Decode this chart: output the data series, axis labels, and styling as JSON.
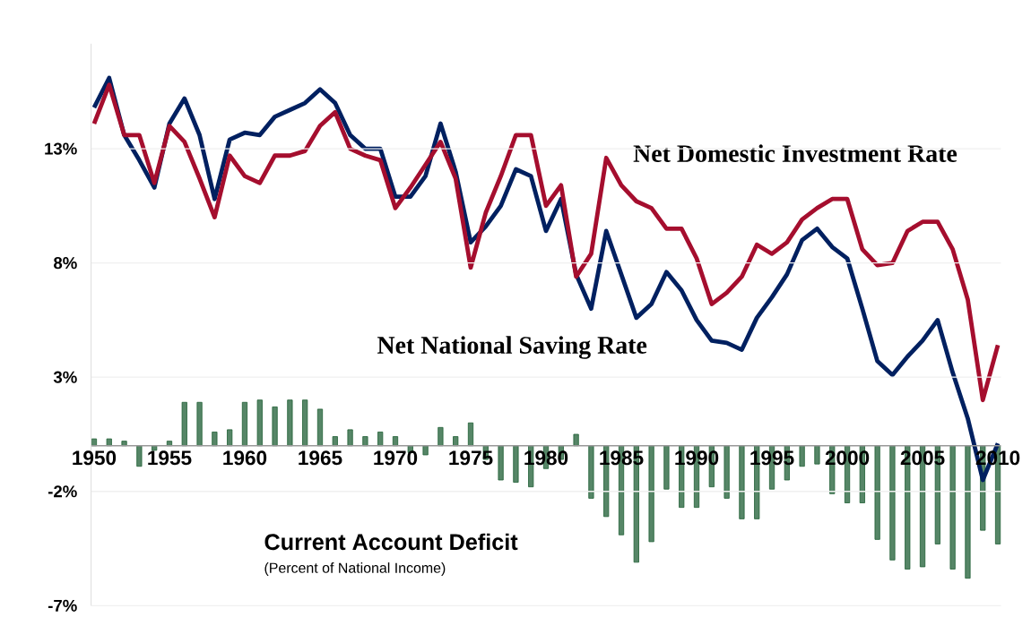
{
  "chart_data": {
    "type": "line",
    "x": [
      1950,
      1951,
      1952,
      1953,
      1954,
      1955,
      1956,
      1957,
      1958,
      1959,
      1960,
      1961,
      1962,
      1963,
      1964,
      1965,
      1966,
      1967,
      1968,
      1969,
      1970,
      1971,
      1972,
      1973,
      1974,
      1975,
      1976,
      1977,
      1978,
      1979,
      1980,
      1981,
      1982,
      1983,
      1984,
      1985,
      1986,
      1987,
      1988,
      1989,
      1990,
      1991,
      1992,
      1993,
      1994,
      1995,
      1996,
      1997,
      1998,
      1999,
      2000,
      2001,
      2002,
      2003,
      2004,
      2005,
      2006,
      2007,
      2008,
      2009,
      2010
    ],
    "series": [
      {
        "name": "Current Account Deficit",
        "type": "bar",
        "color": "#1e5e34",
        "values": [
          0.3,
          0.3,
          0.2,
          -0.9,
          -0.2,
          0.2,
          1.9,
          1.9,
          0.6,
          0.7,
          1.9,
          2.0,
          1.7,
          2.0,
          2.0,
          1.6,
          0.4,
          0.7,
          0.4,
          0.6,
          0.4,
          -0.3,
          -0.4,
          0.8,
          0.4,
          1.0,
          -0.6,
          -1.5,
          -1.6,
          -1.8,
          -1.0,
          -0.6,
          0.5,
          -2.3,
          -3.1,
          -3.9,
          -5.1,
          -4.2,
          -1.9,
          -2.7,
          -2.7,
          -1.8,
          -2.3,
          -3.2,
          -3.2,
          -1.9,
          -1.5,
          -0.9,
          -0.8,
          -2.1,
          -2.5,
          -2.5,
          -4.1,
          -5.0,
          -5.4,
          -5.3,
          -4.3,
          -5.4,
          -5.8,
          -3.7,
          -4.3
        ]
      },
      {
        "name": "Net National Saving Rate",
        "color": "#002060",
        "values": [
          14.8,
          16.1,
          13.6,
          12.5,
          11.3,
          14.1,
          15.2,
          13.6,
          10.8,
          13.4,
          13.7,
          13.6,
          14.4,
          14.7,
          15.0,
          15.6,
          15.0,
          13.6,
          13.0,
          13.0,
          10.9,
          10.9,
          11.8,
          14.1,
          12.0,
          8.9,
          9.6,
          10.5,
          12.1,
          11.8,
          9.4,
          10.8,
          7.5,
          6.0,
          9.4,
          7.5,
          5.6,
          6.2,
          7.6,
          6.8,
          5.5,
          4.6,
          4.5,
          4.2,
          5.6,
          6.5,
          7.5,
          9.0,
          9.5,
          8.7,
          8.2,
          6.0,
          3.7,
          3.1,
          3.9,
          4.6,
          5.5,
          3.2,
          1.2,
          -1.5,
          0.1
        ]
      },
      {
        "name": "Net Domestic Investment Rate",
        "color": "#a50e2e",
        "values": [
          14.1,
          15.8,
          13.6,
          13.6,
          11.5,
          14.0,
          13.3,
          11.7,
          10.0,
          12.7,
          11.8,
          11.5,
          12.7,
          12.7,
          12.9,
          14.0,
          14.6,
          13.0,
          12.7,
          12.5,
          10.4,
          11.3,
          12.3,
          13.3,
          11.7,
          7.8,
          10.2,
          11.8,
          13.6,
          13.6,
          10.5,
          11.4,
          7.4,
          8.4,
          12.6,
          11.4,
          10.7,
          10.4,
          9.5,
          9.5,
          8.2,
          6.2,
          6.7,
          7.4,
          8.8,
          8.4,
          8.9,
          9.9,
          10.4,
          10.8,
          10.8,
          8.6,
          7.9,
          8.0,
          9.4,
          9.8,
          9.8,
          8.6,
          6.4,
          2.0,
          4.4
        ]
      }
    ],
    "annotations": [
      "(Percent of National Income)"
    ],
    "xlim": [
      1949.8,
      2010.2
    ],
    "ylim": [
      -7,
      17.6
    ],
    "xticks": [
      1950,
      1955,
      1960,
      1965,
      1970,
      1975,
      1980,
      1985,
      1990,
      1995,
      2000,
      2005,
      2010
    ],
    "yticks": [
      {
        "value": 13,
        "label": "13%"
      },
      {
        "value": 8,
        "label": "8%"
      },
      {
        "value": 3,
        "label": "3%"
      },
      {
        "value": -2,
        "label": "-2%"
      },
      {
        "value": -7,
        "label": "-7%"
      }
    ],
    "grid": "y",
    "legend": false,
    "marker": "none",
    "line_style": "solid"
  }
}
